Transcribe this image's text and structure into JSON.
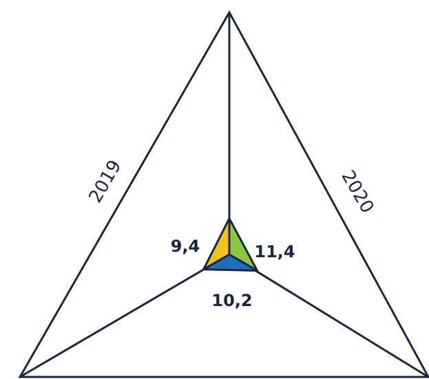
{
  "chart_data": {
    "type": "radar",
    "axes": [
      "2019",
      "2020",
      ""
    ],
    "values": [
      9.4,
      11.4,
      10.2
    ],
    "value_labels": [
      "9,4",
      "11,4",
      "10,2"
    ],
    "axis_labels": [
      "2019",
      "2020"
    ],
    "colors": [
      "#f6c01a",
      "#8dc63f",
      "#1f6fb8"
    ],
    "line_color": "#1a2540",
    "grid": false
  }
}
